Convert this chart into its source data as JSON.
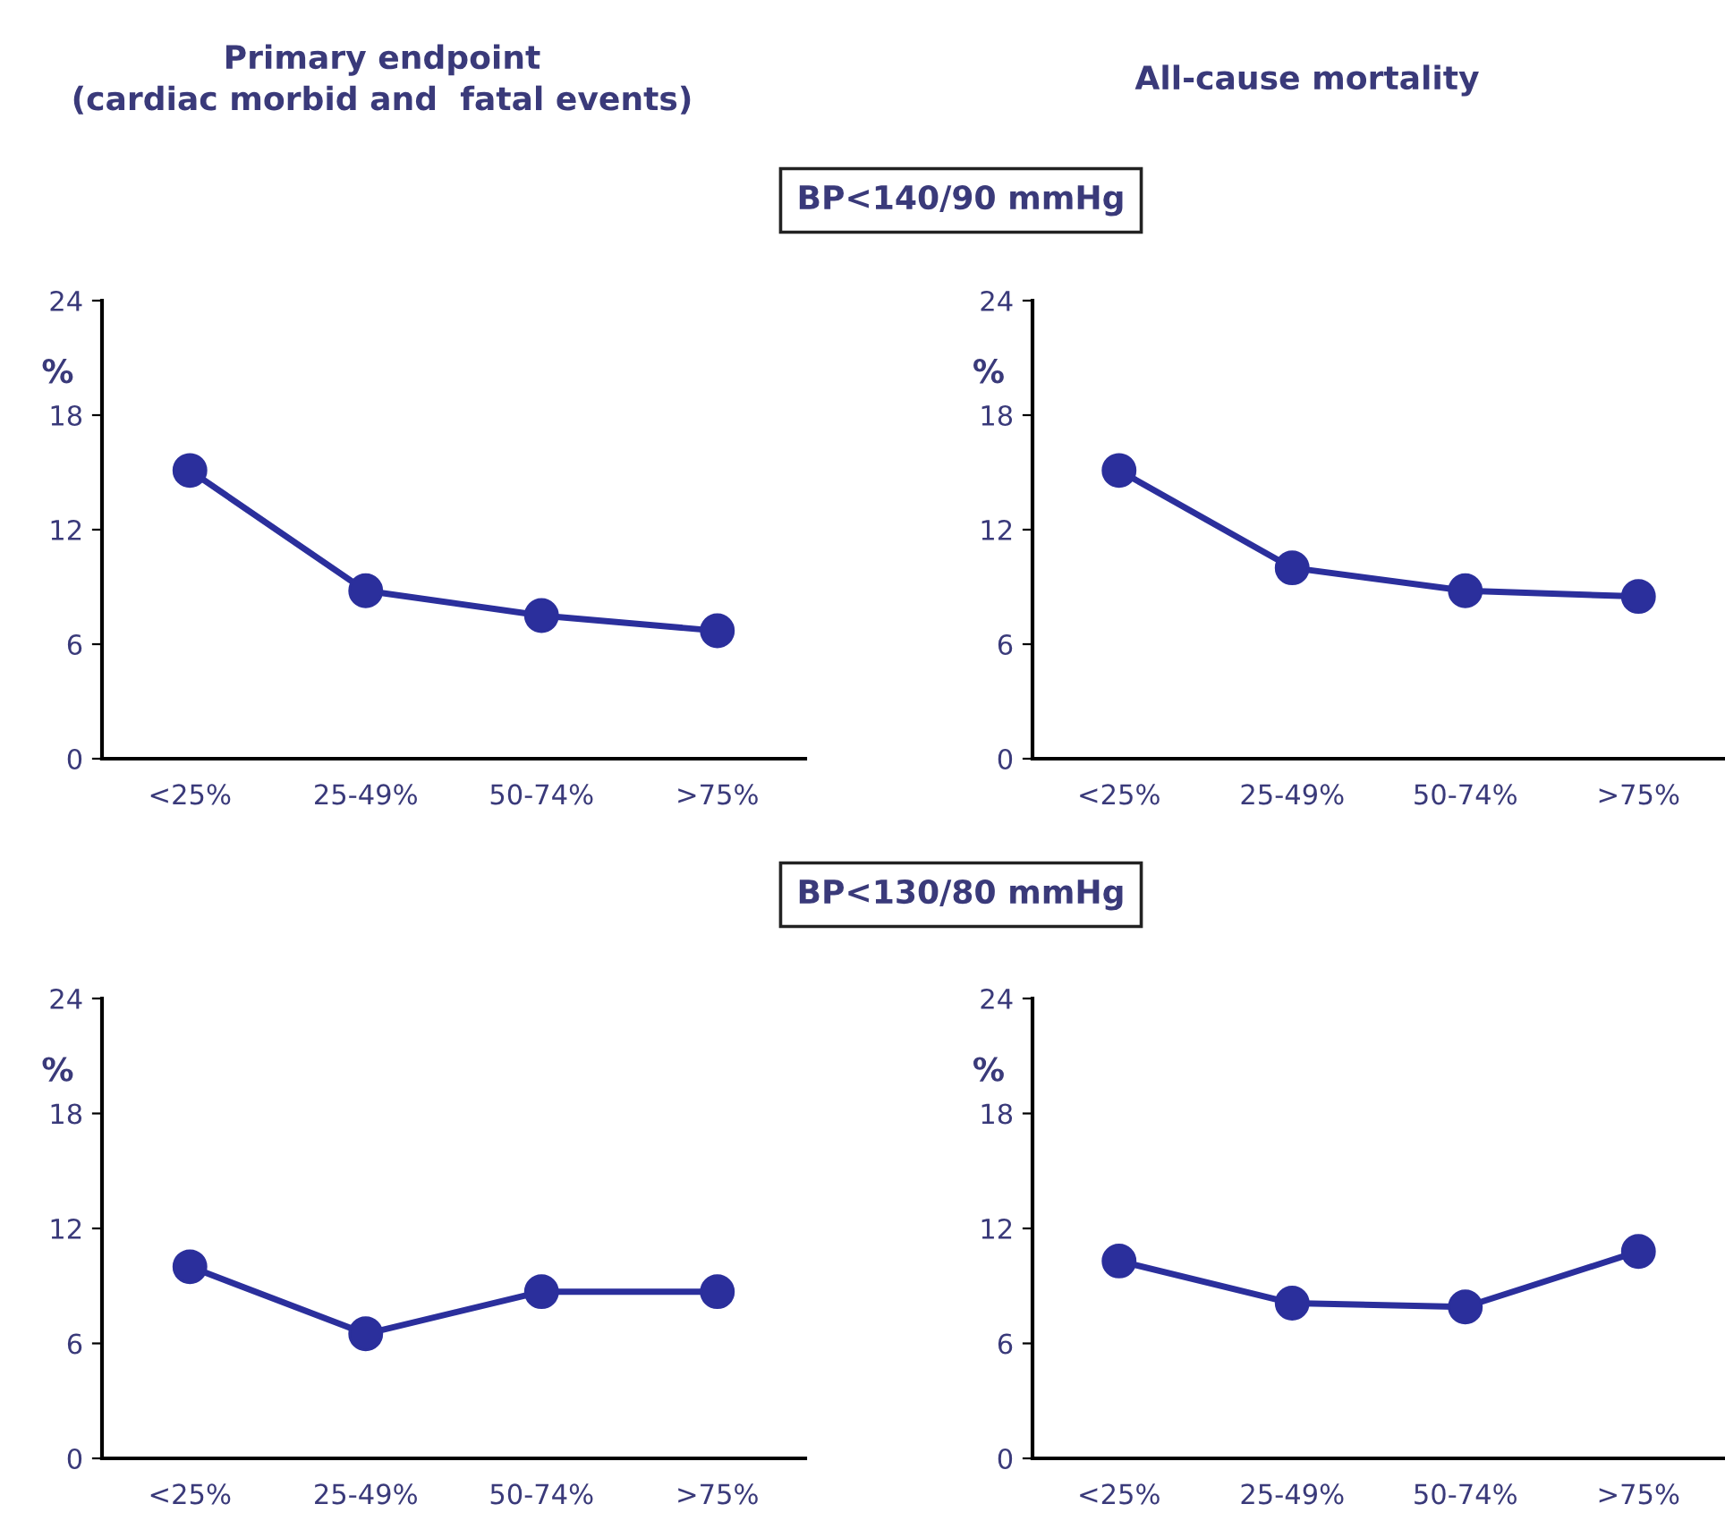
{
  "chart_data": [
    {
      "type": "line",
      "title": "Primary endpoint\n(cardiac morbid and  fatal events)",
      "ylabel": "%",
      "annotations": [
        "BP<140/90 mmHg"
      ],
      "categories": [
        "<25%",
        "25-49%",
        "50-74%",
        ">75%"
      ],
      "series": [
        {
          "color": "#2b2f9c",
          "values": [
            15.1,
            8.8,
            7.5,
            6.7
          ]
        }
      ],
      "ylim": [
        0,
        24
      ],
      "yticks": [
        0,
        6,
        12,
        18,
        24
      ],
      "marker": "circle",
      "line_style": "solid",
      "grid": false,
      "legend": false
    },
    {
      "type": "line",
      "title": "All-cause mortality",
      "ylabel": "%",
      "categories": [
        "<25%",
        "25-49%",
        "50-74%",
        ">75%"
      ],
      "series": [
        {
          "color": "#2b2f9c",
          "values": [
            15.1,
            10.0,
            8.8,
            8.5
          ]
        }
      ],
      "ylim": [
        0,
        24
      ],
      "yticks": [
        0,
        6,
        12,
        18,
        24
      ],
      "marker": "circle",
      "line_style": "solid",
      "grid": false,
      "legend": false
    },
    {
      "type": "line",
      "ylabel": "%",
      "annotations": [
        "BP<130/80 mmHg"
      ],
      "categories": [
        "<25%",
        "25-49%",
        "50-74%",
        ">75%"
      ],
      "series": [
        {
          "color": "#2b2f9c",
          "values": [
            10.0,
            6.5,
            8.7,
            8.7
          ]
        }
      ],
      "ylim": [
        0,
        24
      ],
      "yticks": [
        0,
        6,
        12,
        18,
        24
      ],
      "marker": "circle",
      "line_style": "solid",
      "grid": false,
      "legend": false
    },
    {
      "type": "line",
      "ylabel": "%",
      "categories": [
        "<25%",
        "25-49%",
        "50-74%",
        ">75%"
      ],
      "series": [
        {
          "color": "#2b2f9c",
          "values": [
            10.3,
            8.1,
            7.9,
            10.8
          ]
        }
      ],
      "ylim": [
        0,
        24
      ],
      "yticks": [
        0,
        6,
        12,
        18,
        24
      ],
      "marker": "circle",
      "line_style": "solid",
      "grid": false,
      "legend": false
    }
  ]
}
